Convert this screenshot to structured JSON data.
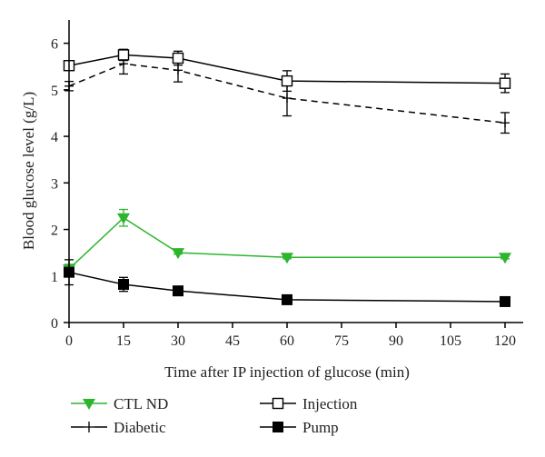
{
  "chart_data": {
    "type": "line",
    "xlabel": "Time after IP injection of glucose (min)",
    "ylabel": "Blood glucose level (g/L)",
    "xlim": [
      0,
      125
    ],
    "ylim": [
      0,
      6.5
    ],
    "xticks": [
      0,
      15,
      30,
      45,
      60,
      75,
      90,
      105,
      120
    ],
    "yticks": [
      0,
      1,
      2,
      3,
      4,
      5,
      6
    ],
    "grid": false,
    "legend_position": "bottom",
    "series": [
      {
        "name": "Injection",
        "color": "#000000",
        "marker": "open-square",
        "line": "solid",
        "x": [
          0,
          15,
          30,
          60,
          120
        ],
        "y": [
          5.52,
          5.75,
          5.68,
          5.19,
          5.14
        ],
        "err": [
          0.1,
          0.12,
          0.15,
          0.22,
          0.2
        ]
      },
      {
        "name": "Diabetic",
        "color": "#000000",
        "marker": "plus",
        "line": "dashed",
        "x": [
          0,
          15,
          30,
          60,
          120
        ],
        "y": [
          5.08,
          5.56,
          5.42,
          4.82,
          4.29
        ],
        "err": [
          0.1,
          0.22,
          0.25,
          0.38,
          0.22
        ]
      },
      {
        "name": "CTL ND",
        "color": "#2db52d",
        "marker": "filled-triangle-down",
        "line": "solid",
        "x": [
          0,
          15,
          30,
          60,
          120
        ],
        "y": [
          1.15,
          2.25,
          1.5,
          1.4,
          1.4
        ],
        "err": [
          0.1,
          0.18,
          0.03,
          0.03,
          0.03
        ]
      },
      {
        "name": "Pump",
        "color": "#000000",
        "marker": "filled-square",
        "line": "solid",
        "x": [
          0,
          15,
          30,
          60,
          120
        ],
        "y": [
          1.08,
          0.82,
          0.68,
          0.49,
          0.45
        ],
        "err": [
          0.27,
          0.15,
          0.08,
          0.03,
          0.03
        ]
      }
    ]
  }
}
